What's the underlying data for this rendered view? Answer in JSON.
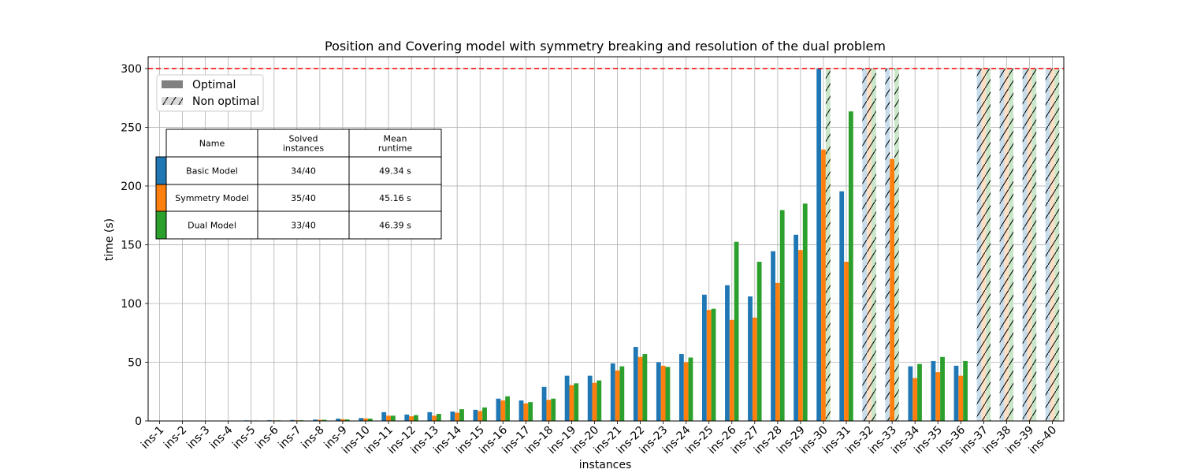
{
  "chart_data": {
    "type": "bar",
    "title": "Position and Covering model with symmetry breaking and resolution of the dual problem",
    "xlabel": "instances",
    "ylabel": "time (s)",
    "ylim": [
      0,
      310
    ],
    "yticks": [
      0,
      50,
      100,
      150,
      200,
      250,
      300
    ],
    "grid": true,
    "time_limit": 300,
    "time_limit_color": "#ff0000",
    "categories": [
      "ins-1",
      "ins-2",
      "ins-3",
      "ins-4",
      "ins-5",
      "ins-6",
      "ins-7",
      "ins-8",
      "ins-9",
      "ins-10",
      "ins-11",
      "ins-12",
      "ins-13",
      "ins-14",
      "ins-15",
      "ins-16",
      "ins-17",
      "ins-18",
      "ins-19",
      "ins-20",
      "ins-21",
      "ins-22",
      "ins-23",
      "ins-24",
      "ins-25",
      "ins-26",
      "ins-27",
      "ins-28",
      "ins-29",
      "ins-30",
      "ins-31",
      "ins-32",
      "ins-33",
      "ins-34",
      "ins-35",
      "ins-36",
      "ins-37",
      "ins-38",
      "ins-39",
      "ins-40"
    ],
    "series": [
      {
        "name": "Basic Model",
        "color": "#1f77b4",
        "values": [
          0.1,
          0.1,
          0.2,
          0.2,
          0.5,
          0.6,
          0.8,
          1.2,
          2.0,
          2.5,
          7.5,
          5.5,
          7.5,
          8.0,
          9.5,
          19.0,
          17.5,
          29.0,
          38.5,
          38.5,
          49.0,
          63.0,
          50.0,
          57.0,
          107.5,
          115.5,
          106.0,
          144.5,
          158.5,
          300,
          195.5,
          300,
          300,
          46.5,
          51.0,
          47.0,
          300,
          300,
          300,
          300
        ],
        "optimal": [
          true,
          true,
          true,
          true,
          true,
          true,
          true,
          true,
          true,
          true,
          true,
          true,
          true,
          true,
          true,
          true,
          true,
          true,
          true,
          true,
          true,
          true,
          true,
          true,
          true,
          true,
          true,
          true,
          true,
          true,
          true,
          false,
          false,
          true,
          true,
          true,
          false,
          false,
          false,
          false
        ]
      },
      {
        "name": "Symmetry Model",
        "color": "#ff7f0e",
        "values": [
          0.1,
          0.1,
          0.1,
          0.2,
          0.4,
          0.5,
          0.6,
          1.0,
          1.5,
          2.2,
          4.5,
          4.0,
          4.5,
          7.0,
          8.5,
          17.5,
          15.0,
          18.0,
          30.5,
          32.5,
          43.0,
          54.5,
          47.0,
          50.0,
          94.5,
          86.0,
          88.0,
          117.5,
          145.5,
          231.0,
          135.5,
          300,
          223.0,
          36.5,
          41.5,
          38.5,
          300,
          300,
          300,
          300
        ],
        "optimal": [
          true,
          true,
          true,
          true,
          true,
          true,
          true,
          true,
          true,
          true,
          true,
          true,
          true,
          true,
          true,
          true,
          true,
          true,
          true,
          true,
          true,
          true,
          true,
          true,
          true,
          true,
          true,
          true,
          true,
          true,
          true,
          false,
          true,
          true,
          true,
          true,
          false,
          false,
          false,
          false
        ]
      },
      {
        "name": "Dual Model",
        "color": "#2ca02c",
        "values": [
          0.1,
          0.1,
          0.2,
          0.2,
          0.4,
          0.5,
          0.6,
          1.0,
          1.3,
          2.0,
          4.5,
          5.0,
          6.0,
          10.0,
          11.5,
          21.0,
          16.0,
          19.0,
          32.0,
          34.5,
          46.5,
          57.0,
          46.0,
          54.0,
          95.5,
          152.5,
          135.5,
          179.5,
          185.0,
          300,
          263.5,
          300,
          300,
          48.5,
          54.5,
          51.0,
          300,
          300,
          300,
          300
        ],
        "optimal": [
          true,
          true,
          true,
          true,
          true,
          true,
          true,
          true,
          true,
          true,
          true,
          true,
          true,
          true,
          true,
          true,
          true,
          true,
          true,
          true,
          true,
          true,
          true,
          true,
          true,
          true,
          true,
          true,
          true,
          false,
          true,
          false,
          false,
          true,
          true,
          true,
          false,
          false,
          false,
          false
        ]
      }
    ],
    "legend": {
      "placement": "upper-left",
      "entries": [
        "Optimal",
        "Non optimal"
      ]
    },
    "summary_table": {
      "headers": [
        "Name",
        "Solved\ninstances",
        "Mean\nruntime"
      ],
      "rows": [
        [
          "Basic Model",
          "34/40",
          "49.34 s"
        ],
        [
          "Symmetry Model",
          "35/40",
          "45.16 s"
        ],
        [
          "Dual Model",
          "33/40",
          "46.39 s"
        ]
      ]
    }
  }
}
